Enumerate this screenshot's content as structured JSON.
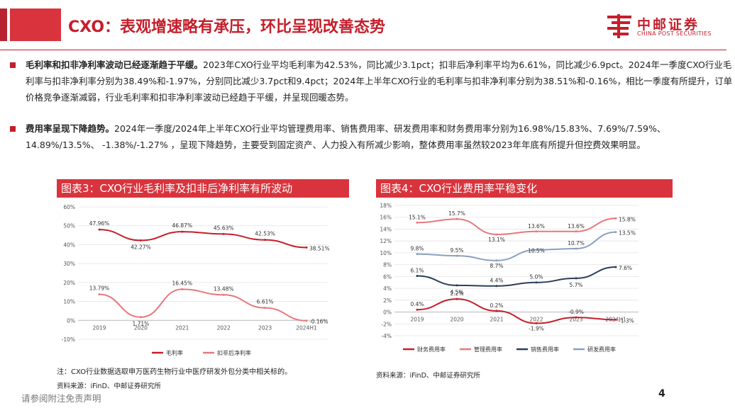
{
  "header": {
    "title": "CXO：表观增速略有承压，环比呈现改善态势",
    "logo_cn": "中邮证券",
    "logo_en": "CHINA POST SECURITIES"
  },
  "colors": {
    "brand": "#c41f2b",
    "accent": "#d9343d"
  },
  "paragraphs": [
    {
      "lead": "毛利率和扣非净利率波动已经逐渐趋于平缓。",
      "text": "2023年CXO行业平均毛利率为42.53%，同比减少3.1pct；扣非后净利率平均为6.61%，同比减少6.9pct。2024年一季度CXO行业毛利率与扣非净利率分别为38.49%和-1.97%，分别同比减少3.7pct和9.4pct；2024年上半年CXO行业的毛利率与扣非净利率分别为38.51%和-0.16%，相比一季度有所提升，订单价格竞争逐渐减弱，行业毛利率和扣非净利率波动已经趋于平缓，并呈现回暖态势。"
    },
    {
      "lead": "费用率呈现下降趋势。",
      "text": "2024年一季度/2024年上半年CXO行业平均管理费用率、销售费用率、研发费用率和财务费用率分别为16.98%/15.83%、7.69%/7.59%、14.89%/13.5%、 -1.38%/-1.27% ，呈现下降趋势，主要受到固定资产、人力投入有所减少影响，整体费用率虽然较2023年年底有所提升但控费效果明显。"
    }
  ],
  "chart_data": [
    {
      "type": "line",
      "title": "图表3：CXO行业毛利率及扣非后净利率有所波动",
      "categories": [
        "2019",
        "2020",
        "2021",
        "2022",
        "2023",
        "2024H1"
      ],
      "ylim": [
        -10,
        60
      ],
      "yticks": [
        "60%",
        "50%",
        "40%",
        "30%",
        "20%",
        "10%",
        "0%",
        "-10%"
      ],
      "series": [
        {
          "name": "毛利率",
          "color": "#c41f2b",
          "values": [
            47.96,
            42.27,
            46.87,
            45.63,
            42.53,
            38.51
          ],
          "labels": [
            "47.96%",
            "42.27%",
            "46.87%",
            "45.63%",
            "42.53%",
            "38.51%"
          ]
        },
        {
          "name": "扣非后净利率",
          "color": "#e8777c",
          "values": [
            13.79,
            1.71,
            16.45,
            13.48,
            6.61,
            -0.16
          ],
          "labels": [
            "13.79%",
            "1.71%",
            "16.45%",
            "13.48%",
            "6.61%",
            "-0.16%"
          ]
        }
      ]
    },
    {
      "type": "line",
      "title": "图表4：CXO行业费用率平稳变化",
      "categories": [
        "2019",
        "2020",
        "2021",
        "2022",
        "2023",
        "2024H1"
      ],
      "ylim": [
        -4,
        18
      ],
      "yticks": [
        "18%",
        "16%",
        "14%",
        "12%",
        "10%",
        "8%",
        "6%",
        "4%",
        "2%",
        "0%",
        "-2%",
        "-4%"
      ],
      "series": [
        {
          "name": "财务费用率",
          "color": "#c41f2b",
          "values": [
            0.4,
            2.2,
            0.2,
            -1.9,
            -0.9,
            -1.3
          ],
          "labels": [
            "0.4%",
            "2.2%",
            "0.2%",
            "-1.9%",
            "-0.9%",
            "-1.3%"
          ]
        },
        {
          "name": "管理费用率",
          "color": "#e8777c",
          "values": [
            15.1,
            15.7,
            13.1,
            13.6,
            13.6,
            15.8
          ],
          "labels": [
            "15.1%",
            "15.7%",
            "13.1%",
            "13.6%",
            "13.6%",
            "15.8%"
          ]
        },
        {
          "name": "销售费用率",
          "color": "#2c3e5a",
          "values": [
            6.1,
            4.5,
            4.4,
            5.0,
            5.7,
            7.6
          ],
          "labels": [
            "6.1%",
            "4.5%",
            "4.4%",
            "5.0%",
            "5.7%",
            "7.6%"
          ]
        },
        {
          "name": "研发费用率",
          "color": "#8aa0bf",
          "values": [
            9.8,
            9.5,
            8.7,
            10.5,
            10.7,
            13.5
          ],
          "labels": [
            "9.8%",
            "9.5%",
            "8.7%",
            "10.5%",
            "10.7%",
            "13.5%"
          ]
        }
      ]
    }
  ],
  "notes": {
    "chart1_note": "注：CXO行业数据选取申万医药生物行业中医疗研发外包分类中相关标的。",
    "chart1_source": "资料来源：iFinD、中邮证券研究所",
    "chart2_source": "资料来源：iFinD、中邮证券研究所"
  },
  "footer": {
    "disclaimer": "请参阅附注免责声明",
    "page": "4"
  }
}
